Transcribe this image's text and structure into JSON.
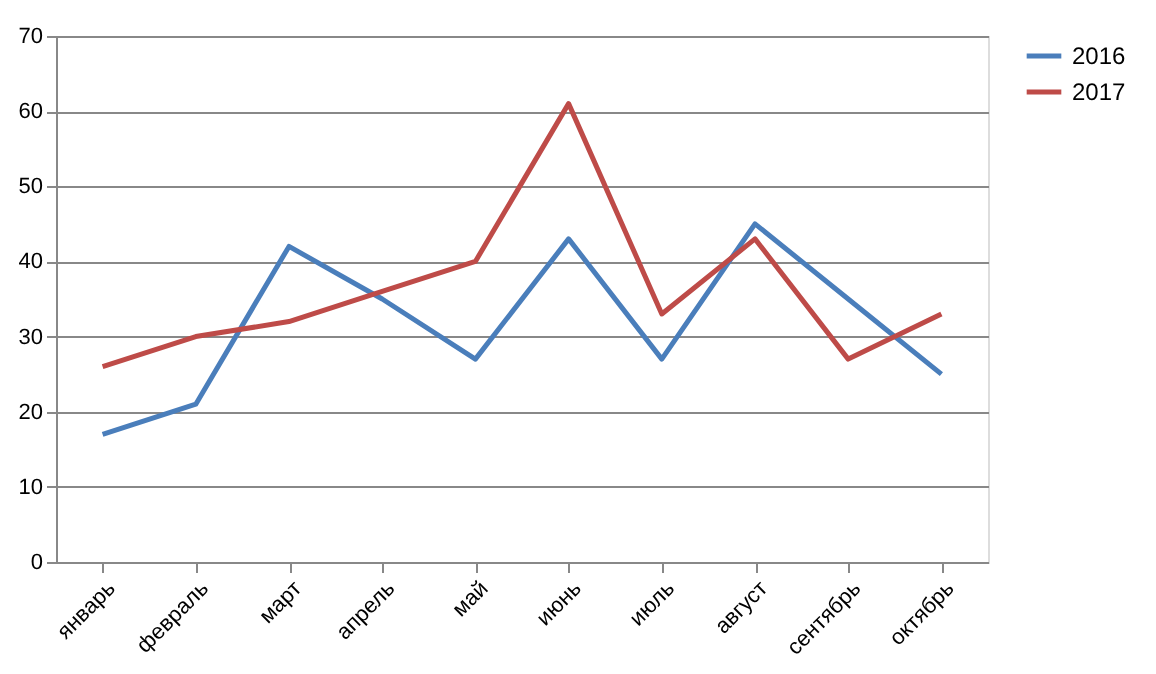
{
  "chart_data": {
    "type": "line",
    "categories": [
      "январь",
      "февраль",
      "март",
      "апрель",
      "май",
      "июнь",
      "июль",
      "август",
      "сентябрь",
      "октябрь"
    ],
    "series": [
      {
        "name": "2016",
        "color": "#4a7ebb",
        "values": [
          17,
          21,
          42,
          35,
          27,
          43,
          27,
          45,
          35,
          25
        ]
      },
      {
        "name": "2017",
        "color": "#be4b48",
        "values": [
          26,
          30,
          32,
          36,
          40,
          61,
          33,
          43,
          27,
          33
        ]
      }
    ],
    "ylim": [
      0,
      70
    ],
    "yticks": [
      0,
      10,
      20,
      30,
      40,
      50,
      60,
      70
    ],
    "grid": "y",
    "legend": "right",
    "marker": "none",
    "line_style": "solid"
  }
}
